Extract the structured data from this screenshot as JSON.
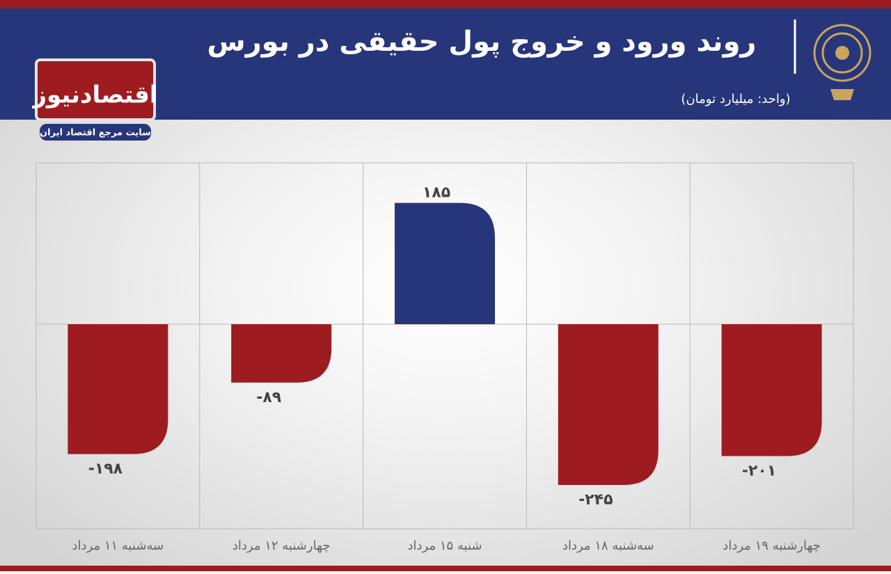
{
  "chart_data": {
    "type": "bar",
    "title": "روند ورود و خروج پول حقیقی در بورس",
    "subtitle": "(واحد: میلیارد تومان)",
    "brand": "اقتصادنیوز",
    "brand_tagline": "سایت مرجع اقتصاد ایران",
    "categories": [
      "سه‌شنبه ۱۱ مرداد",
      "چهارشنبه ۱۲ مرداد",
      "شنبه ۱۵ مرداد",
      "سه‌شنبه ۱۸ مرداد",
      "چهارشنبه ۱۹ مرداد"
    ],
    "values": [
      -198,
      -89,
      185,
      -245,
      -201
    ],
    "value_labels": [
      "-۱۹۸",
      "-۸۹",
      "۱۸۵",
      "-۲۴۵",
      "-۲۰۱"
    ],
    "positive_color": "#27367a",
    "negative_color": "#9e1b20"
  }
}
